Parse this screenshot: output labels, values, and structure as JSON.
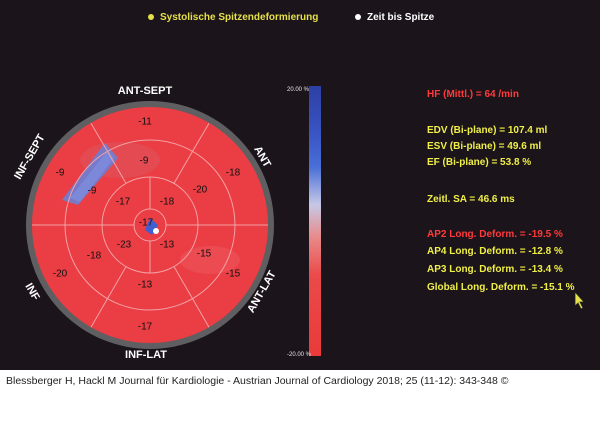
{
  "legend": {
    "peak_label": "Systolische Spitzendeformierung",
    "time_label": "Zeit bis Spitze"
  },
  "walls": {
    "ant_sept": "ANT-SEPT",
    "ant": "ANT",
    "ant_lat": "ANT-LAT",
    "inf_lat": "INF-LAT",
    "inf": "INF",
    "inf_sept": "INF-SEPT"
  },
  "segments": {
    "outer": [
      "-11",
      "-18",
      "-15",
      "-17",
      "-20",
      "-9"
    ],
    "mid": [
      "-9",
      "-20",
      "-15",
      "-13",
      "-18",
      "-9"
    ],
    "inner": [
      "-18",
      "-13",
      "-23",
      "-17"
    ],
    "apex": "-17"
  },
  "colorbar": {
    "max_label": "20.00 %",
    "min_label": "-20.00 %"
  },
  "info": {
    "hr": "HF (Mittl.) = 64 /min",
    "edv": "EDV (Bi-plane) = 107.4 ml",
    "esv": "ESV (Bi-plane) = 49.6 ml",
    "ef": "EF (Bi-plane) = 53.8 %",
    "sa": "Zeitl. SA = 46.6 ms",
    "ap2": "AP2 Long. Deform. = -19.5 %",
    "ap4": "AP4 Long. Deform. = -12.8 %",
    "ap3": "AP3 Long. Deform. = -13.4 %",
    "global": "Global Long. Deform. = -15.1 %"
  },
  "caption": "Blessberger H, Hackl M Journal für Kardiologie - Austrian Journal of Cardiology 2018; 25 (11-12): 343-348 ©",
  "colors": {
    "segment_red": "#ea3d44",
    "segment_blue": "#5b73cf",
    "info_red": "#ff3a3a",
    "info_yellow": "#f0ef48"
  }
}
